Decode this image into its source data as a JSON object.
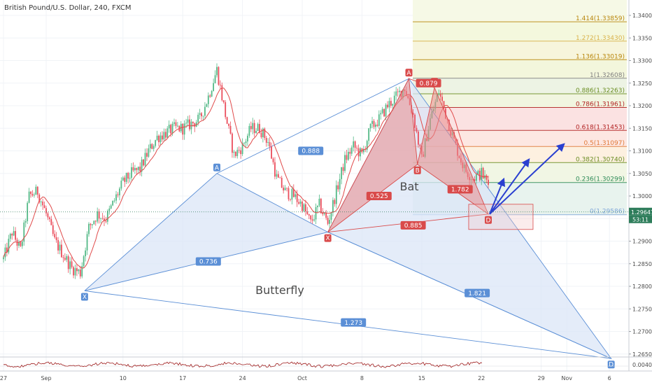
{
  "header": {
    "title": "British Pound/U.S. Dollar, 240, FXCM"
  },
  "price_tags": {
    "last_price": "1.29647",
    "countdown": "53:11",
    "last_value": 1.29647
  },
  "colors": {
    "up_candle": "#53b987",
    "down_candle": "#eb4d5c",
    "butterfly": "#5b8fd6",
    "bat": "#d94a4a",
    "projection_arrow": "#2a3fd0",
    "price_tag": "#2e7d5b",
    "oscillator": "#9e1b1b"
  },
  "chart_data": {
    "type": "candlestick",
    "title": "British Pound/U.S. Dollar, 240, FXCM",
    "y_range": [
      1.258,
      1.3455
    ],
    "y_ticks": [
      "1.34000",
      "1.33500",
      "1.33000",
      "1.32500",
      "1.32000",
      "1.31500",
      "1.31000",
      "1.30500",
      "1.30000",
      "1.29500",
      "1.29000",
      "1.28500",
      "1.28000",
      "1.27500",
      "1.27000",
      "1.26500"
    ],
    "y_tick_values": [
      1.34,
      1.335,
      1.33,
      1.325,
      1.32,
      1.315,
      1.31,
      1.305,
      1.3,
      1.295,
      1.29,
      1.285,
      1.28,
      1.275,
      1.27,
      1.265
    ],
    "x_ticks": [
      {
        "label": "27",
        "day": 0
      },
      {
        "label": "Sep",
        "day": 5
      },
      {
        "label": "10",
        "day": 14
      },
      {
        "label": "17",
        "day": 21
      },
      {
        "label": "24",
        "day": 28
      },
      {
        "label": "Oct",
        "day": 35
      },
      {
        "label": "8",
        "day": 42
      },
      {
        "label": "15",
        "day": 49
      },
      {
        "label": "22",
        "day": 56
      },
      {
        "label": "29",
        "day": 63
      },
      {
        "label": "Nov",
        "day": 66
      },
      {
        "label": "6",
        "day": 71
      }
    ],
    "oscillator_tick": "0.0040",
    "price_path": [
      {
        "d": 0,
        "v": 1.286
      },
      {
        "d": 1,
        "v": 1.292
      },
      {
        "d": 2,
        "v": 1.288
      },
      {
        "d": 3,
        "v": 1.3
      },
      {
        "d": 4,
        "v": 1.301
      },
      {
        "d": 5,
        "v": 1.296
      },
      {
        "d": 6,
        "v": 1.29
      },
      {
        "d": 7,
        "v": 1.287
      },
      {
        "d": 8,
        "v": 1.284
      },
      {
        "d": 9,
        "v": 1.283
      },
      {
        "d": 10,
        "v": 1.293
      },
      {
        "d": 11,
        "v": 1.296
      },
      {
        "d": 12,
        "v": 1.295
      },
      {
        "d": 13,
        "v": 1.299
      },
      {
        "d": 14,
        "v": 1.303
      },
      {
        "d": 15,
        "v": 1.305
      },
      {
        "d": 16,
        "v": 1.306
      },
      {
        "d": 17,
        "v": 1.31
      },
      {
        "d": 18,
        "v": 1.313
      },
      {
        "d": 19,
        "v": 1.314
      },
      {
        "d": 20,
        "v": 1.315
      },
      {
        "d": 21,
        "v": 1.315
      },
      {
        "d": 22,
        "v": 1.316
      },
      {
        "d": 23,
        "v": 1.317
      },
      {
        "d": 24,
        "v": 1.322
      },
      {
        "d": 25,
        "v": 1.328
      },
      {
        "d": 26,
        "v": 1.318
      },
      {
        "d": 27,
        "v": 1.309
      },
      {
        "d": 28,
        "v": 1.311
      },
      {
        "d": 29,
        "v": 1.315
      },
      {
        "d": 30,
        "v": 1.315
      },
      {
        "d": 31,
        "v": 1.312
      },
      {
        "d": 32,
        "v": 1.304
      },
      {
        "d": 33,
        "v": 1.301
      },
      {
        "d": 34,
        "v": 1.3
      },
      {
        "d": 35,
        "v": 1.298
      },
      {
        "d": 36,
        "v": 1.294
      },
      {
        "d": 37,
        "v": 1.298
      },
      {
        "d": 38,
        "v": 1.294
      },
      {
        "d": 39,
        "v": 1.301
      },
      {
        "d": 40,
        "v": 1.308
      },
      {
        "d": 41,
        "v": 1.311
      },
      {
        "d": 42,
        "v": 1.309
      },
      {
        "d": 43,
        "v": 1.315
      },
      {
        "d": 44,
        "v": 1.317
      },
      {
        "d": 45,
        "v": 1.32
      },
      {
        "d": 46,
        "v": 1.322
      },
      {
        "d": 47,
        "v": 1.324
      },
      {
        "d": 48,
        "v": 1.318
      },
      {
        "d": 49,
        "v": 1.308
      },
      {
        "d": 50,
        "v": 1.317
      },
      {
        "d": 51,
        "v": 1.323
      },
      {
        "d": 52,
        "v": 1.317
      },
      {
        "d": 53,
        "v": 1.311
      },
      {
        "d": 54,
        "v": 1.306
      },
      {
        "d": 55,
        "v": 1.304
      },
      {
        "d": 56,
        "v": 1.305
      },
      {
        "d": 57,
        "v": 1.302
      }
    ],
    "butterfly_pattern": {
      "name": "Butterfly",
      "points": [
        {
          "label": "X",
          "d": 9.5,
          "v": 1.279
        },
        {
          "label": "A",
          "d": 25,
          "v": 1.305
        },
        {
          "label": "B",
          "d": 38,
          "v": 1.292
        },
        {
          "label": "C",
          "d": 47.5,
          "v": 1.326
        },
        {
          "label": "D",
          "d": 71.2,
          "v": 1.264
        }
      ],
      "ratios": [
        {
          "label": "0.888",
          "d": 36,
          "v": 1.31
        },
        {
          "label": "0.736",
          "d": 24,
          "v": 1.2855
        },
        {
          "label": "1.821",
          "d": 55.5,
          "v": 1.2785
        },
        {
          "label": "1.273",
          "d": 41,
          "v": 1.272
        }
      ]
    },
    "bat_pattern": {
      "name": "Bat",
      "points": [
        {
          "label": "X",
          "d": 38,
          "v": 1.292
        },
        {
          "label": "A",
          "d": 47.5,
          "v": 1.326
        },
        {
          "label": "B",
          "d": 48.5,
          "v": 1.307
        },
        {
          "label": "C",
          "d": 50.5,
          "v": 1.324
        },
        {
          "label": "D",
          "d": 56.8,
          "v": 1.296
        }
      ],
      "ratios": [
        {
          "label": "0.879",
          "d": 49.8,
          "v": 1.325
        },
        {
          "label": "0.525",
          "d": 44,
          "v": 1.3
        },
        {
          "label": "1.782",
          "d": 53.5,
          "v": 1.3015
        },
        {
          "label": "0.885",
          "d": 48,
          "v": 1.2935
        }
      ]
    },
    "fib_levels": [
      {
        "ratio": "1.414",
        "price": "1.33859",
        "value": 1.33859,
        "color": "#b8860b"
      },
      {
        "ratio": "1.272",
        "price": "1.33430",
        "value": 1.3343,
        "color": "#d9b24a"
      },
      {
        "ratio": "1.136",
        "price": "1.33019",
        "value": 1.33019,
        "color": "#b8860b"
      },
      {
        "ratio": "1",
        "price": "1.32608",
        "value": 1.32608,
        "color": "#808080"
      },
      {
        "ratio": "0.886",
        "price": "1.32263",
        "value": 1.32263,
        "color": "#6b8e23"
      },
      {
        "ratio": "0.786",
        "price": "1.31961",
        "value": 1.31961,
        "color": "#b22222"
      },
      {
        "ratio": "0.618",
        "price": "1.31453",
        "value": 1.31453,
        "color": "#b22222"
      },
      {
        "ratio": "0.5",
        "price": "1.31097",
        "value": 1.31097,
        "color": "#e07b39"
      },
      {
        "ratio": "0.382",
        "price": "1.30740",
        "value": 1.3074,
        "color": "#6b8e23"
      },
      {
        "ratio": "0.236",
        "price": "1.30299",
        "value": 1.30299,
        "color": "#2e8b57"
      },
      {
        "ratio": "0",
        "price": "1.29586",
        "value": 1.29586,
        "color": "#7fa7d9"
      }
    ]
  }
}
